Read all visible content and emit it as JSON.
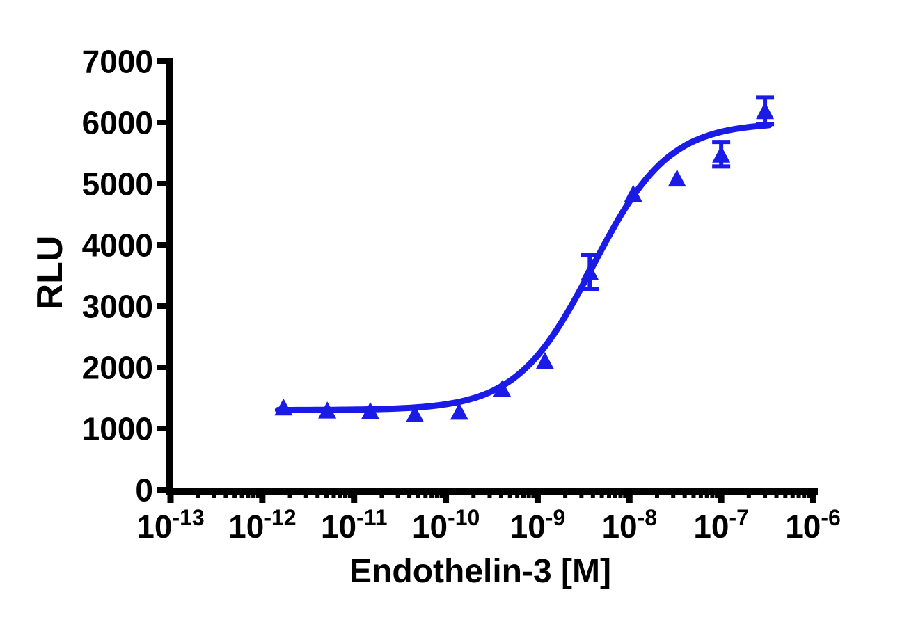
{
  "chart_data": {
    "type": "scatter",
    "title": "",
    "xlabel": "Endothelin-3 [M]",
    "ylabel": "RLU",
    "x_scale": "log10",
    "x_tick_decades": [
      -13,
      -12,
      -11,
      -10,
      -9,
      -8,
      -7,
      -6
    ],
    "x_tick_base": "10",
    "x_minor_tick_multipliers": [
      2,
      3,
      4,
      5,
      6,
      7,
      8,
      9
    ],
    "y_ticks": [
      0,
      1000,
      2000,
      3000,
      4000,
      5000,
      6000,
      7000
    ],
    "xlim_log": [
      -13.05,
      -5.95
    ],
    "ylim": [
      0,
      7000
    ],
    "grid": false,
    "legend": "none",
    "series_name": "Endothelin-3",
    "marker": "triangle-up",
    "accent_color": "#1b1be8",
    "axis_color": "#000000",
    "points": [
      {
        "conc_m": 1.7e-12,
        "rlu": 1350,
        "sem": 0
      },
      {
        "conc_m": 5.1e-12,
        "rlu": 1300,
        "sem": 0
      },
      {
        "conc_m": 1.5e-11,
        "rlu": 1290,
        "sem": 0
      },
      {
        "conc_m": 4.6e-11,
        "rlu": 1240,
        "sem": 0
      },
      {
        "conc_m": 1.4e-10,
        "rlu": 1280,
        "sem": 0
      },
      {
        "conc_m": 4.1e-10,
        "rlu": 1650,
        "sem": 0
      },
      {
        "conc_m": 1.2e-09,
        "rlu": 2110,
        "sem": 0
      },
      {
        "conc_m": 3.7e-09,
        "rlu": 3560,
        "sem": 280
      },
      {
        "conc_m": 1.1e-08,
        "rlu": 4840,
        "sem": 0
      },
      {
        "conc_m": 3.3e-08,
        "rlu": 5090,
        "sem": 0
      },
      {
        "conc_m": 1e-07,
        "rlu": 5480,
        "sem": 200
      },
      {
        "conc_m": 3e-07,
        "rlu": 6190,
        "sem": 215
      }
    ],
    "fit": {
      "model": "four-parameter-logistic",
      "bottom": 1300,
      "top": 6000,
      "log_ec50": -8.4,
      "hill": 1.05,
      "curve_logx_range": [
        -11.83,
        -6.44
      ]
    }
  }
}
